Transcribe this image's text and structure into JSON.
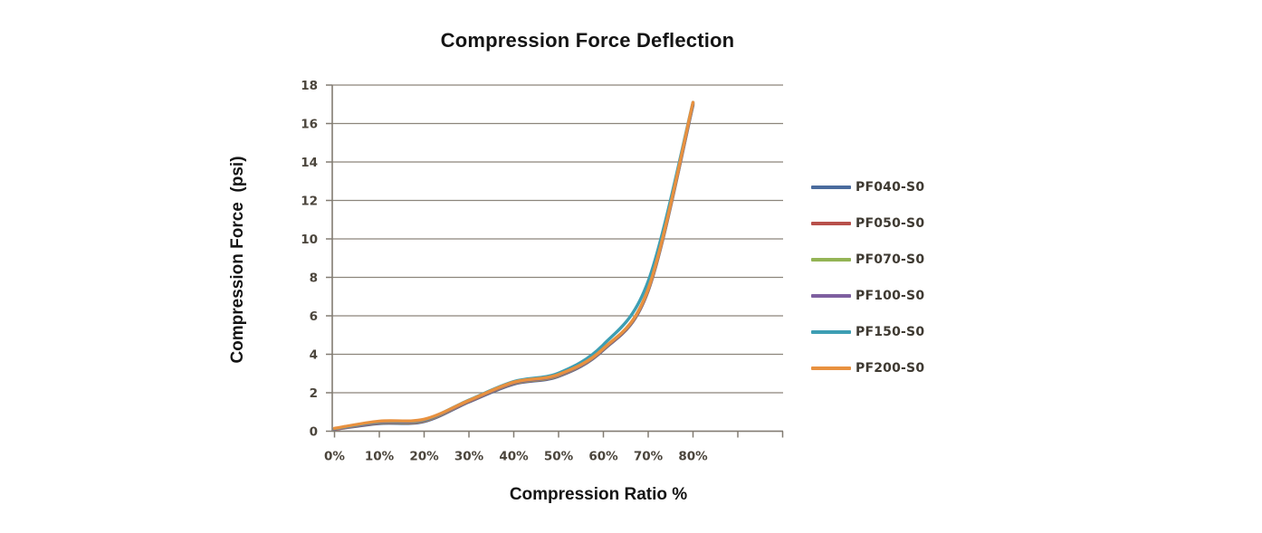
{
  "chart_data": {
    "type": "line",
    "title": "Compression Force Deflection",
    "xlabel": "Compression Ratio %",
    "ylabel": "Compression Force  (psi)",
    "x_tick_labels": [
      "0%",
      "10%",
      "20%",
      "30%",
      "40%",
      "50%",
      "60%",
      "70%",
      "80%"
    ],
    "x_values_percent": [
      0,
      10,
      20,
      30,
      40,
      50,
      60,
      70,
      80
    ],
    "x_axis_tick_step_percent": 10,
    "xlim_percent": [
      0,
      100
    ],
    "y_ticks": [
      0,
      2,
      4,
      6,
      8,
      10,
      12,
      14,
      16,
      18
    ],
    "ylim": [
      0,
      18
    ],
    "grid": true,
    "legend_position": "right",
    "series": [
      {
        "name": "PF040-S0",
        "color": "#4A6B9D",
        "values": [
          0.1,
          0.4,
          0.5,
          1.52,
          2.45,
          2.85,
          4.22,
          7.3,
          16.95
        ]
      },
      {
        "name": "PF050-S0",
        "color": "#B8504B",
        "values": [
          0.1,
          0.43,
          0.53,
          1.55,
          2.48,
          2.88,
          4.25,
          7.33,
          17.0
        ]
      },
      {
        "name": "PF070-S0",
        "color": "#94B455",
        "values": [
          0.12,
          0.45,
          0.55,
          1.57,
          2.5,
          2.9,
          4.27,
          7.36,
          17.02
        ]
      },
      {
        "name": "PF100-S0",
        "color": "#7E5FA0",
        "values": [
          0.12,
          0.47,
          0.57,
          1.58,
          2.52,
          2.92,
          4.28,
          7.38,
          17.05
        ]
      },
      {
        "name": "PF150-S0",
        "color": "#3D9EB3",
        "values": [
          0.13,
          0.5,
          0.6,
          1.62,
          2.58,
          3.02,
          4.5,
          7.8,
          17.1
        ]
      },
      {
        "name": "PF200-S0",
        "color": "#E8913F",
        "values": [
          0.15,
          0.52,
          0.62,
          1.6,
          2.55,
          2.95,
          4.3,
          7.4,
          17.1
        ]
      }
    ]
  },
  "colors": {
    "gridline": "#8C857B",
    "axis": "#827C72",
    "tick_text": "#4B453C",
    "title_text": "#141414",
    "background": "#FFFFFF"
  }
}
